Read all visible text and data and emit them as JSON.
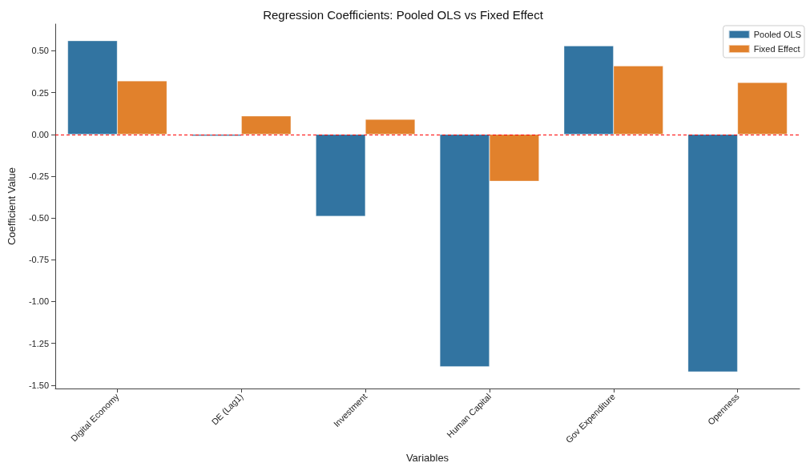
{
  "chart_data": {
    "type": "bar",
    "title": "Regression Coefficients: Pooled OLS vs Fixed Effect",
    "xlabel": "Variables",
    "ylabel": "Coefficient Value",
    "categories": [
      "Digital Economy",
      "DE (Lag1)",
      "Investment",
      "Human Capital",
      "Gov Expenditure",
      "Openness"
    ],
    "series": [
      {
        "name": "Pooled OLS",
        "color": "#3274a1",
        "values": [
          0.56,
          -0.01,
          -0.49,
          -1.39,
          0.53,
          -1.42
        ]
      },
      {
        "name": "Fixed Effect",
        "color": "#e1812c",
        "values": [
          0.32,
          0.11,
          0.09,
          -0.28,
          0.41,
          0.31
        ]
      }
    ],
    "ylim": [
      -1.52,
      0.66
    ],
    "yticks": [
      {
        "value": -1.5,
        "label": "-1.50"
      },
      {
        "value": -1.25,
        "label": "-1.25"
      },
      {
        "value": -1.0,
        "label": "-1.00"
      },
      {
        "value": -0.75,
        "label": "-0.75"
      },
      {
        "value": -0.5,
        "label": "-0.50"
      },
      {
        "value": -0.25,
        "label": "-0.25"
      },
      {
        "value": 0,
        "label": "0.00"
      },
      {
        "value": 0.25,
        "label": "0.25"
      },
      {
        "value": 0.5,
        "label": "0.50"
      }
    ],
    "ref_lines": [
      {
        "axis": "y",
        "value": 0,
        "color": "#ff0000",
        "line_style": "dashed"
      }
    ],
    "grid": false,
    "legend": "top right"
  }
}
